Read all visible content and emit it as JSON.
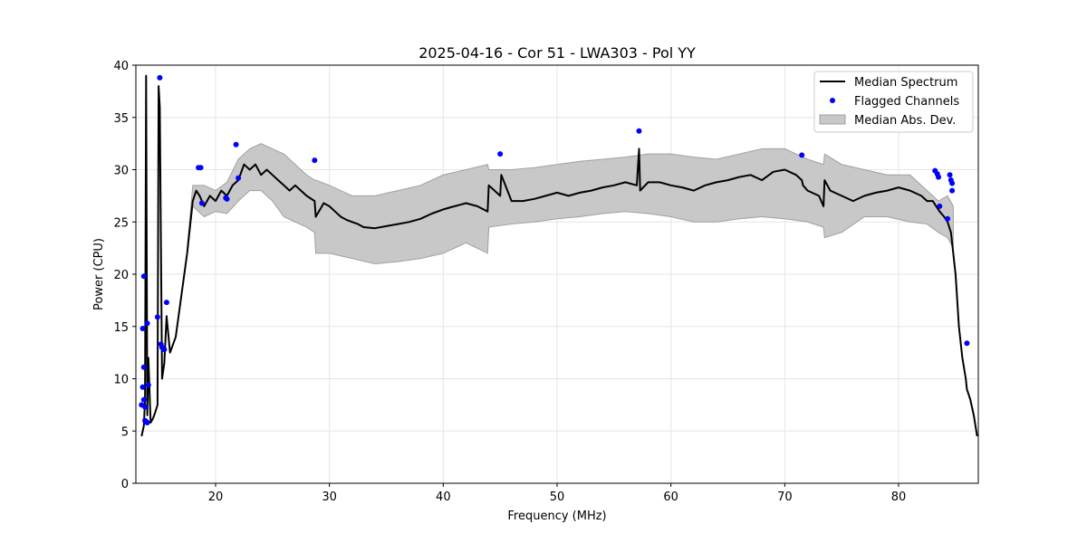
{
  "chart_data": {
    "type": "line",
    "title": "2025-04-16 - Cor 51 - LWA303 - Pol YY",
    "xlabel": "Frequency (MHz)",
    "ylabel": "Power (CPU)",
    "xlim": [
      13.0,
      87.0
    ],
    "ylim": [
      0,
      40
    ],
    "xticks": [
      20,
      30,
      40,
      50,
      60,
      70,
      80
    ],
    "yticks": [
      0,
      5,
      10,
      15,
      20,
      25,
      30,
      35,
      40
    ],
    "grid": true,
    "legend_position": "top-right",
    "legend": [
      "Median Spectrum",
      "Flagged Channels",
      "Median Abs. Dev."
    ],
    "colors": {
      "median": "#000000",
      "flagged": "#0000ff",
      "mad_fill": "#c8c8c8",
      "mad_edge": "#a0a0a0",
      "grid": "#e6e6e6"
    },
    "series": [
      {
        "name": "Median Spectrum",
        "x": [
          13.5,
          13.7,
          13.8,
          13.9,
          14.0,
          14.1,
          14.3,
          14.5,
          14.7,
          14.9,
          15.0,
          15.1,
          15.3,
          15.5,
          15.7,
          16.0,
          16.5,
          17.0,
          17.5,
          18.0,
          18.3,
          18.6,
          19.0,
          19.5,
          20.0,
          20.5,
          21.0,
          21.5,
          22.0,
          22.5,
          23.0,
          23.5,
          24.0,
          24.5,
          25.0,
          25.5,
          26.0,
          26.5,
          27.0,
          27.5,
          28.0,
          28.7,
          28.8,
          29.5,
          30.0,
          30.5,
          31.0,
          31.5,
          32.0,
          32.5,
          33.0,
          34.0,
          35.0,
          36.0,
          37.0,
          38.0,
          39.0,
          40.0,
          41.0,
          42.0,
          43.0,
          43.9,
          44.0,
          45.0,
          45.1,
          46.0,
          47.0,
          48.0,
          49.0,
          50.0,
          51.0,
          52.0,
          53.0,
          54.0,
          55.0,
          56.0,
          57.0,
          57.2,
          57.3,
          58.0,
          59.0,
          60.0,
          61.0,
          62.0,
          63.0,
          64.0,
          65.0,
          66.0,
          67.0,
          68.0,
          69.0,
          70.0,
          71.0,
          71.5,
          71.6,
          72.0,
          73.0,
          73.4,
          73.5,
          74.0,
          75.0,
          76.0,
          77.0,
          78.0,
          79.0,
          80.0,
          81.0,
          82.0,
          82.5,
          83.0,
          83.3,
          83.6,
          84.0,
          84.3,
          84.6,
          85.0,
          85.3,
          85.6,
          85.9,
          86.0,
          86.3,
          86.6,
          86.9
        ],
        "y": [
          4.5,
          5.5,
          8.0,
          39.0,
          6.5,
          12.0,
          5.8,
          6.2,
          6.8,
          7.5,
          38.0,
          36.0,
          10.0,
          11.5,
          16.0,
          12.5,
          14.0,
          18.0,
          22.0,
          27.0,
          28.0,
          27.5,
          26.5,
          27.5,
          27.0,
          28.0,
          27.5,
          28.5,
          29.0,
          30.5,
          30.0,
          30.5,
          29.5,
          30.0,
          29.5,
          29.0,
          28.5,
          28.0,
          28.5,
          28.0,
          27.5,
          27.0,
          25.5,
          26.8,
          26.5,
          26.0,
          25.5,
          25.2,
          25.0,
          24.8,
          24.5,
          24.4,
          24.6,
          24.8,
          25.0,
          25.3,
          25.8,
          26.2,
          26.5,
          26.8,
          26.5,
          26.0,
          28.5,
          27.5,
          29.5,
          27.0,
          27.0,
          27.2,
          27.5,
          27.8,
          27.5,
          27.8,
          28.0,
          28.3,
          28.5,
          28.8,
          28.5,
          32.0,
          28.0,
          28.8,
          28.8,
          28.5,
          28.3,
          28.0,
          28.5,
          28.8,
          29.0,
          29.3,
          29.5,
          29.0,
          29.8,
          30.0,
          29.5,
          29.0,
          28.5,
          28.0,
          27.5,
          26.5,
          29.0,
          28.0,
          27.5,
          27.0,
          27.5,
          27.8,
          28.0,
          28.3,
          28.0,
          27.5,
          27.0,
          27.0,
          26.5,
          26.0,
          25.5,
          25.0,
          24.0,
          20.0,
          15.0,
          12.0,
          10.0,
          9.0,
          8.0,
          6.5,
          4.5
        ]
      },
      {
        "name": "Median Abs. Dev.",
        "x": [
          17.5,
          18.0,
          19.0,
          20.0,
          21.0,
          22.0,
          23.0,
          24.0,
          25.0,
          26.0,
          27.0,
          28.0,
          28.7,
          28.8,
          30.0,
          32.0,
          34.0,
          36.0,
          38.0,
          40.0,
          42.0,
          43.9,
          44.0,
          46.0,
          48.0,
          50.0,
          52.0,
          54.0,
          56.0,
          58.0,
          60.0,
          62.0,
          64.0,
          66.0,
          68.0,
          70.0,
          72.0,
          73.4,
          73.5,
          75.0,
          77.0,
          79.0,
          81.0,
          82.5,
          83.5,
          84.3,
          84.8
        ],
        "lower": [
          22.0,
          26.5,
          25.5,
          26.0,
          25.8,
          27.0,
          28.0,
          28.0,
          27.0,
          25.5,
          25.0,
          24.5,
          24.0,
          22.0,
          22.0,
          21.5,
          21.0,
          21.2,
          21.5,
          22.0,
          23.0,
          22.0,
          24.5,
          24.8,
          25.0,
          25.3,
          25.5,
          25.8,
          26.0,
          25.8,
          25.5,
          25.0,
          25.0,
          25.3,
          25.5,
          25.3,
          25.0,
          24.5,
          23.5,
          24.0,
          25.5,
          25.5,
          25.0,
          24.8,
          24.0,
          23.5,
          22.5
        ],
        "upper": [
          22.5,
          28.5,
          28.5,
          28.0,
          28.8,
          31.0,
          32.0,
          32.5,
          32.0,
          31.5,
          30.5,
          29.5,
          29.0,
          29.0,
          28.5,
          27.5,
          27.5,
          28.0,
          28.5,
          29.5,
          30.0,
          30.5,
          30.0,
          30.0,
          30.2,
          30.5,
          30.8,
          31.0,
          31.2,
          31.5,
          31.5,
          31.2,
          31.0,
          31.5,
          32.0,
          32.0,
          31.0,
          30.5,
          31.5,
          30.5,
          30.0,
          29.5,
          29.5,
          28.0,
          27.0,
          27.5,
          26.5
        ]
      },
      {
        "name": "Flagged Channels",
        "x": [
          13.5,
          13.6,
          13.6,
          13.7,
          13.7,
          13.7,
          13.8,
          13.8,
          13.9,
          14.0,
          14.0,
          14.1,
          14.9,
          15.1,
          15.2,
          15.3,
          15.4,
          15.5,
          15.7,
          18.5,
          18.7,
          18.8,
          20.9,
          21.0,
          21.8,
          22.0,
          28.7,
          45.0,
          57.2,
          71.5,
          83.2,
          83.4,
          83.5,
          83.6,
          84.3,
          84.5,
          84.6,
          84.7,
          84.7,
          86.0
        ],
        "y": [
          7.5,
          9.2,
          14.8,
          11.1,
          19.8,
          8.0,
          7.3,
          6.0,
          5.9,
          5.8,
          15.3,
          9.4,
          15.9,
          38.8,
          13.3,
          13.0,
          12.9,
          12.8,
          17.3,
          30.2,
          30.2,
          26.8,
          27.3,
          27.2,
          32.4,
          29.2,
          30.9,
          31.5,
          33.7,
          31.4,
          29.9,
          29.6,
          29.3,
          26.5,
          25.3,
          29.5,
          29.0,
          28.7,
          28.0,
          13.4
        ]
      }
    ]
  }
}
